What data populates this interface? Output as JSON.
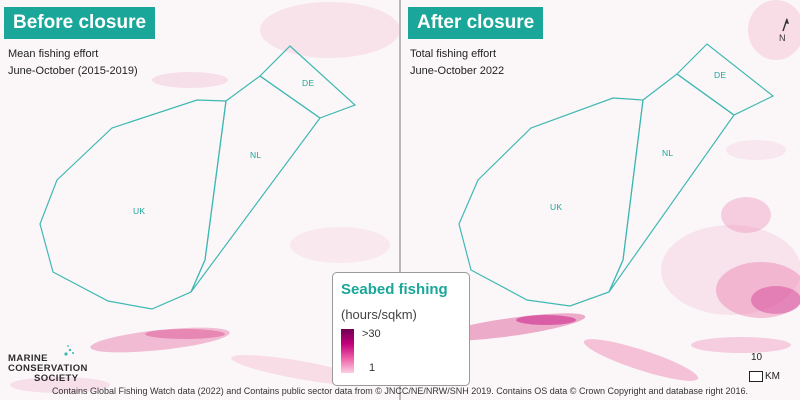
{
  "panels": {
    "left": {
      "title": "Before closure",
      "subtitle_line1": "Mean fishing effort",
      "subtitle_line2": "June-October (2015-2019)",
      "zones": {
        "uk": "UK",
        "nl": "NL",
        "de": "DE"
      }
    },
    "right": {
      "title": "After closure",
      "subtitle_line1": "Total fishing effort",
      "subtitle_line2": "June-October 2022",
      "zones": {
        "uk": "UK",
        "nl": "NL",
        "de": "DE"
      }
    }
  },
  "legend": {
    "title": "Seabed fishing",
    "units": "(hours/sqkm)",
    "max_label": ">30",
    "min_label": "1",
    "colors": [
      "#6d0052",
      "#c2007a",
      "#ee60a8",
      "#fbd0e4"
    ]
  },
  "logo": {
    "line1": "MARINE",
    "line2": "CONSERVATION",
    "line3": "SOCIETY"
  },
  "scale_bar": {
    "value": "10",
    "unit": "KM"
  },
  "north_arrow": {
    "label": "N",
    "icon": "north-arrow-icon"
  },
  "footer": "Contains Global Fishing Watch data (2022) and Contains public sector data from © JNCC/NE/NRW/SNH 2019. Contains OS data © Crown Copyright and database right 2016.",
  "colors": {
    "accent": "#1aa79a",
    "boundary": "#3fb8b3",
    "fishing": "#e0609c"
  }
}
